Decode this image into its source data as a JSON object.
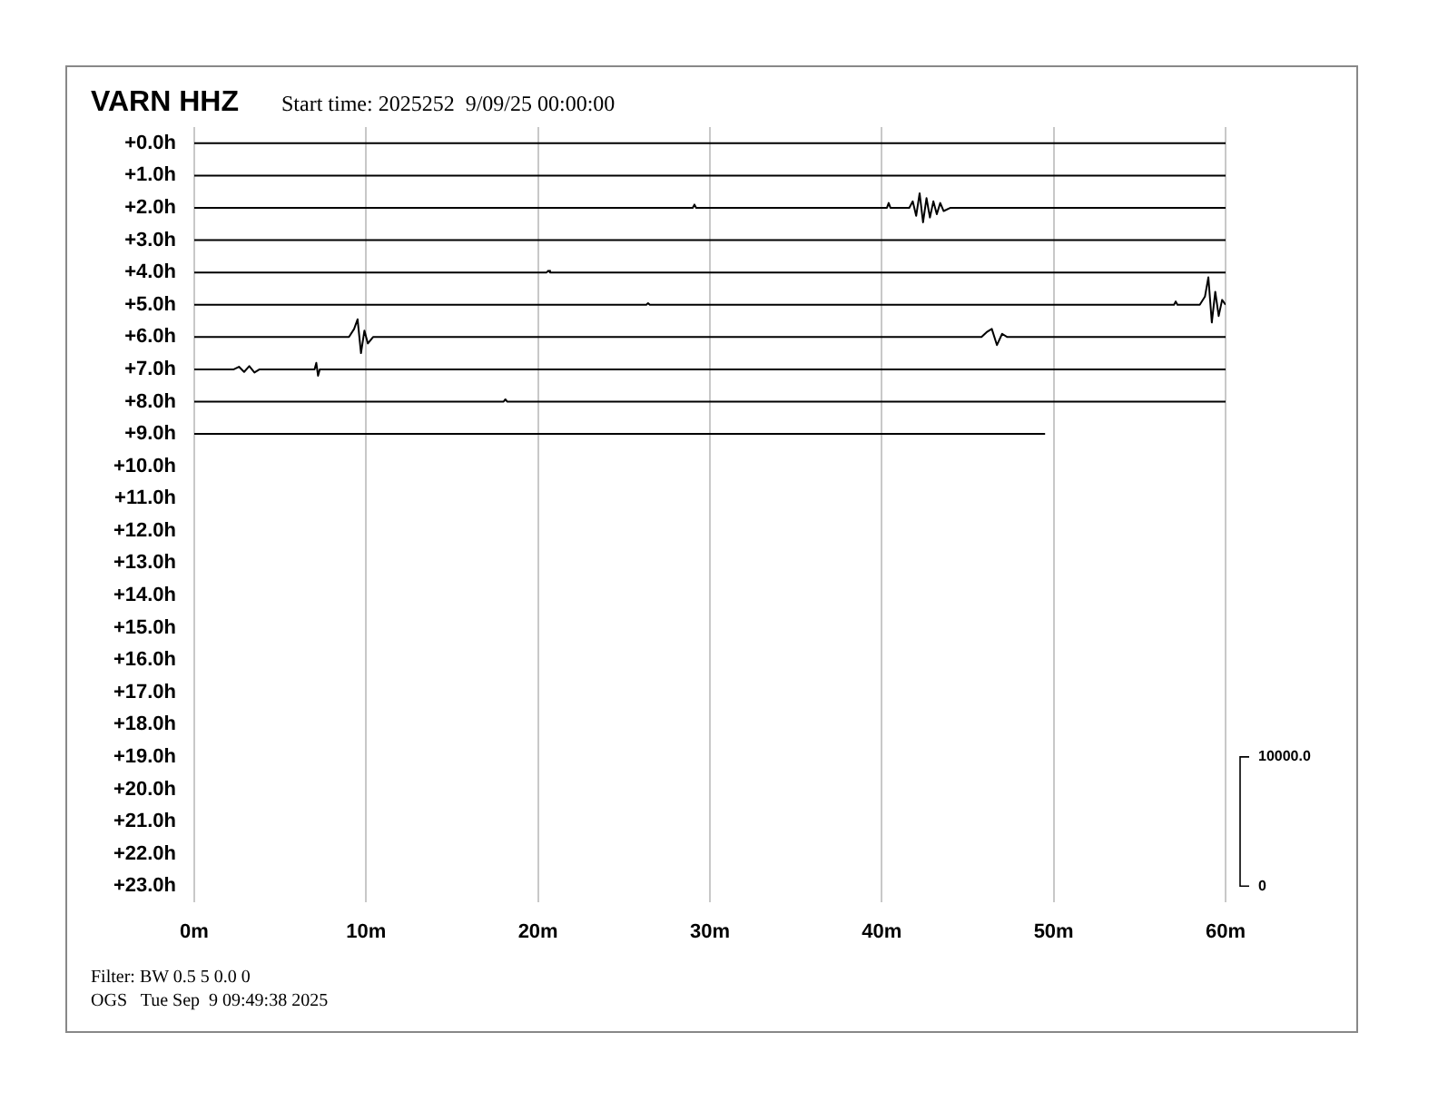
{
  "chart_data": {
    "type": "line",
    "title": "VARN HHZ",
    "subtitle": "Start time: 2025252  9/09/25 00:00:00",
    "annotations": [
      "Filter: BW 0.5 5 0.0 0",
      "OGS   Tue Sep  9 09:49:38 2025"
    ],
    "xlim": [
      0,
      60
    ],
    "xticks": [
      {
        "value": 0,
        "label": "0m"
      },
      {
        "value": 10,
        "label": "10m"
      },
      {
        "value": 20,
        "label": "20m"
      },
      {
        "value": 30,
        "label": "30m"
      },
      {
        "value": 40,
        "label": "40m"
      },
      {
        "value": 50,
        "label": "50m"
      },
      {
        "value": 60,
        "label": "60m"
      }
    ],
    "ylim": [
      23.5,
      -0.5
    ],
    "yticks": [
      {
        "value": 0,
        "label": "+0.0h"
      },
      {
        "value": 1,
        "label": "+1.0h"
      },
      {
        "value": 2,
        "label": "+2.0h"
      },
      {
        "value": 3,
        "label": "+3.0h"
      },
      {
        "value": 4,
        "label": "+4.0h"
      },
      {
        "value": 5,
        "label": "+5.0h"
      },
      {
        "value": 6,
        "label": "+6.0h"
      },
      {
        "value": 7,
        "label": "+7.0h"
      },
      {
        "value": 8,
        "label": "+8.0h"
      },
      {
        "value": 9,
        "label": "+9.0h"
      },
      {
        "value": 10,
        "label": "+10.0h"
      },
      {
        "value": 11,
        "label": "+11.0h"
      },
      {
        "value": 12,
        "label": "+12.0h"
      },
      {
        "value": 13,
        "label": "+13.0h"
      },
      {
        "value": 14,
        "label": "+14.0h"
      },
      {
        "value": 15,
        "label": "+15.0h"
      },
      {
        "value": 16,
        "label": "+16.0h"
      },
      {
        "value": 17,
        "label": "+17.0h"
      },
      {
        "value": 18,
        "label": "+18.0h"
      },
      {
        "value": 19,
        "label": "+19.0h"
      },
      {
        "value": 20,
        "label": "+20.0h"
      },
      {
        "value": 21,
        "label": "+21.0h"
      },
      {
        "value": 22,
        "label": "+22.0h"
      },
      {
        "value": 23,
        "label": "+23.0h"
      }
    ],
    "y2lim": [
      -1250,
      58750
    ],
    "y2ticks": [
      0,
      {
        "value": 10000,
        "label": "10000.0"
      }
    ],
    "grid": "x",
    "legend": false,
    "marker": "none",
    "line_style": "solid",
    "series": [
      {
        "color": "#000000",
        "x": [
          0,
          60
        ],
        "values": [
          0,
          0
        ]
      },
      {
        "color": "#000000",
        "x": [
          0,
          60
        ],
        "values": [
          1,
          1
        ]
      },
      {
        "color": "#000000",
        "x": [
          0,
          29.0,
          29.1,
          29.2,
          40.3,
          40.4,
          40.5,
          41.6,
          41.8,
          42.0,
          42.2,
          42.4,
          42.6,
          42.8,
          43.0,
          43.2,
          43.4,
          43.6,
          44.0,
          60
        ],
        "values": [
          2,
          2,
          1.9,
          2,
          2,
          1.85,
          2,
          2,
          1.8,
          2.25,
          1.55,
          2.45,
          1.7,
          2.3,
          1.8,
          2.2,
          1.85,
          2.1,
          2,
          2
        ]
      },
      {
        "color": "#000000",
        "x": [
          0,
          60
        ],
        "values": [
          3,
          3
        ]
      },
      {
        "color": "#000000",
        "x": [
          0,
          20.5,
          20.6,
          20.7,
          60
        ],
        "values": [
          4,
          4,
          3.95,
          4,
          4
        ]
      },
      {
        "color": "#000000",
        "x": [
          0,
          26.3,
          26.4,
          26.5,
          57.0,
          57.1,
          57.2,
          58.5,
          58.8,
          59.0,
          59.2,
          59.4,
          59.6,
          59.8,
          60
        ],
        "values": [
          5,
          5,
          4.95,
          5,
          5,
          4.9,
          5,
          5,
          4.75,
          4.15,
          5.55,
          4.6,
          5.35,
          4.85,
          5
        ]
      },
      {
        "color": "#000000",
        "x": [
          0,
          9.0,
          9.3,
          9.5,
          9.7,
          9.9,
          10.1,
          10.4,
          45.8,
          46.1,
          46.4,
          46.7,
          47.0,
          47.3,
          60
        ],
        "values": [
          6,
          6,
          5.75,
          5.45,
          6.5,
          5.8,
          6.2,
          6,
          6,
          5.85,
          5.75,
          6.25,
          5.9,
          6,
          6
        ]
      },
      {
        "color": "#000000",
        "x": [
          0,
          2.3,
          2.6,
          2.9,
          3.2,
          3.5,
          3.8,
          7.0,
          7.1,
          7.2,
          7.3,
          60
        ],
        "values": [
          7,
          7,
          6.92,
          7.08,
          6.9,
          7.1,
          7,
          7,
          6.8,
          7.2,
          7,
          7
        ]
      },
      {
        "color": "#000000",
        "x": [
          0,
          18.0,
          18.1,
          18.2,
          60
        ],
        "values": [
          8,
          8,
          7.93,
          8,
          8
        ]
      },
      {
        "color": "#000000",
        "x": [
          0,
          49.5
        ],
        "values": [
          9,
          9
        ]
      }
    ]
  }
}
